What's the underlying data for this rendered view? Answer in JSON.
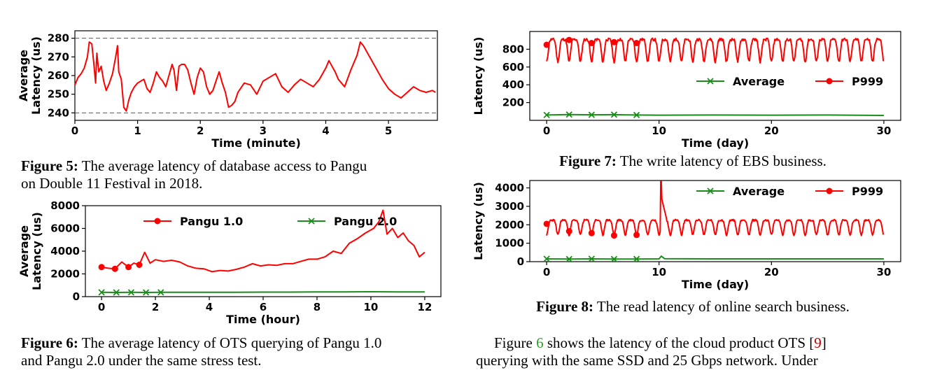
{
  "charts": [
    {
      "id": "fig5",
      "type": "line",
      "xlabel": "Time (minute)",
      "ylabel": "Average Latency (us)",
      "xlim": [
        0,
        5.78
      ],
      "ylim": [
        236,
        284
      ],
      "xticks": [
        0,
        1,
        2,
        3,
        4,
        5
      ],
      "yticks": [
        240,
        250,
        260,
        270,
        280
      ],
      "hlines": [
        240,
        280
      ],
      "legend": [],
      "series": [
        {
          "name": "",
          "color": "#ff0000",
          "marker": "none",
          "x": [
            0,
            0.05,
            0.1,
            0.15,
            0.2,
            0.23,
            0.27,
            0.3,
            0.33,
            0.35,
            0.38,
            0.42,
            0.46,
            0.5,
            0.55,
            0.6,
            0.65,
            0.68,
            0.7,
            0.74,
            0.78,
            0.82,
            0.86,
            0.9,
            0.95,
            1.0,
            1.05,
            1.1,
            1.15,
            1.2,
            1.25,
            1.3,
            1.35,
            1.4,
            1.45,
            1.5,
            1.55,
            1.58,
            1.62,
            1.66,
            1.7,
            1.75,
            1.8,
            1.85,
            1.9,
            1.95,
            2.0,
            2.05,
            2.1,
            2.15,
            2.2,
            2.25,
            2.3,
            2.35,
            2.4,
            2.45,
            2.5,
            2.55,
            2.6,
            2.7,
            2.8,
            2.9,
            3.0,
            3.1,
            3.2,
            3.3,
            3.4,
            3.5,
            3.6,
            3.7,
            3.8,
            3.9,
            4.0,
            4.05,
            4.1,
            4.15,
            4.2,
            4.3,
            4.4,
            4.5,
            4.55,
            4.6,
            4.7,
            4.8,
            4.9,
            5.0,
            5.1,
            5.2,
            5.3,
            5.4,
            5.5,
            5.6,
            5.7,
            5.75
          ],
          "y": [
            255,
            259,
            261,
            264,
            270,
            278,
            277,
            267,
            256,
            272,
            262,
            265,
            257,
            252,
            256,
            261,
            270,
            276,
            262,
            258,
            243,
            241,
            247,
            251,
            254,
            256,
            257,
            258,
            253,
            251,
            256,
            262,
            259,
            257,
            254,
            260,
            266,
            263,
            252,
            265,
            266,
            266,
            263,
            256,
            250,
            259,
            264,
            262,
            254,
            250,
            252,
            257,
            262,
            256,
            251,
            243,
            244,
            246,
            251,
            256,
            255,
            250,
            257,
            259,
            261,
            254,
            251,
            255,
            258,
            256,
            254,
            258,
            264,
            268,
            265,
            262,
            258,
            254,
            263,
            271,
            278,
            276,
            270,
            264,
            258,
            253,
            250,
            248,
            251,
            254,
            252,
            251,
            252,
            251
          ]
        }
      ]
    },
    {
      "id": "fig6",
      "type": "line",
      "xlabel": "Time (hour)",
      "ylabel": "Average Latency (us)",
      "xlim": [
        -0.6,
        12.6
      ],
      "ylim": [
        0,
        8000
      ],
      "xticks": [
        0,
        2,
        4,
        6,
        8,
        10,
        12
      ],
      "yticks": [
        0,
        2000,
        4000,
        6000,
        8000
      ],
      "hlines": [],
      "legend": [
        "Pangu 1.0",
        "Pangu 2.0"
      ],
      "series": [
        {
          "name": "Pangu 1.0",
          "color": "#ff0000",
          "marker": "dot",
          "x": [
            0,
            0.25,
            0.5,
            0.75,
            1.0,
            1.2,
            1.4,
            1.6,
            1.8,
            2.0,
            2.3,
            2.6,
            2.9,
            3.2,
            3.5,
            3.8,
            4.1,
            4.4,
            4.7,
            5.0,
            5.3,
            5.6,
            5.9,
            6.2,
            6.5,
            6.8,
            7.1,
            7.4,
            7.7,
            8.0,
            8.3,
            8.6,
            8.9,
            9.2,
            9.5,
            9.8,
            10.1,
            10.3,
            10.45,
            10.6,
            10.8,
            11.0,
            11.2,
            11.4,
            11.6,
            11.8,
            12.0
          ],
          "y": [
            2600,
            2500,
            2450,
            3050,
            2600,
            2950,
            2800,
            3900,
            2950,
            3250,
            3100,
            3200,
            3050,
            2700,
            2500,
            2450,
            2200,
            2300,
            2250,
            2400,
            2600,
            2900,
            2700,
            2800,
            2750,
            2900,
            2900,
            3100,
            3300,
            3300,
            3500,
            4000,
            3800,
            4700,
            5100,
            5600,
            6000,
            6600,
            7600,
            5500,
            6000,
            5200,
            5600,
            4900,
            4500,
            3500,
            3900
          ]
        },
        {
          "name": "Pangu 2.0",
          "color": "#1a8c1a",
          "marker": "x",
          "x": [
            0,
            0.55,
            1.1,
            1.65,
            2.2,
            3,
            4,
            5,
            6,
            7,
            8,
            9,
            10,
            11,
            12
          ],
          "y": [
            380,
            370,
            380,
            370,
            380,
            380,
            390,
            380,
            400,
            400,
            410,
            420,
            430,
            420,
            420
          ]
        }
      ]
    },
    {
      "id": "fig7",
      "type": "line",
      "xlabel": "Time (day)",
      "ylabel": "Latency (us)",
      "xlim": [
        -1.5,
        31.5
      ],
      "ylim": [
        0,
        1000
      ],
      "xticks": [
        0,
        10,
        20,
        30
      ],
      "yticks": [
        200,
        400,
        600,
        800
      ],
      "hlines": [],
      "legend": [
        "Average",
        "P999"
      ],
      "series": [
        {
          "name": "Average",
          "color": "#1a8c1a",
          "marker": "x",
          "x": [
            0,
            2,
            4,
            6,
            8,
            10,
            15,
            20,
            25,
            30
          ],
          "y": [
            60,
            65,
            62,
            64,
            60,
            58,
            60,
            58,
            60,
            55
          ]
        },
        {
          "name": "P999",
          "color": "#ff0000",
          "marker": "dot",
          "dots_x": [
            0,
            2,
            4,
            6,
            8
          ],
          "dots_y": [
            850,
            905,
            870,
            880,
            870
          ],
          "pattern": {
            "period": 1.0,
            "min": 660,
            "max": 910
          }
        }
      ]
    },
    {
      "id": "fig8",
      "type": "line",
      "xlabel": "Time (day)",
      "ylabel": "Latency (us)",
      "xlim": [
        -1.5,
        31.5
      ],
      "ylim": [
        0,
        4400
      ],
      "xticks": [
        0,
        10,
        20,
        30
      ],
      "yticks": [
        0,
        1000,
        2000,
        3000,
        4000
      ],
      "hlines": [],
      "legend": [
        "Average",
        "P999"
      ],
      "series": [
        {
          "name": "Average",
          "color": "#1a8c1a",
          "marker": "x",
          "x": [
            0,
            2,
            4,
            6,
            8,
            10,
            10.2,
            10.5,
            15,
            20,
            25,
            30
          ],
          "y": [
            150,
            140,
            150,
            140,
            145,
            150,
            300,
            160,
            150,
            150,
            150,
            150
          ]
        },
        {
          "name": "P999",
          "color": "#ff0000",
          "marker": "dot",
          "dots_x": [
            0,
            2,
            4,
            6,
            8
          ],
          "dots_y": [
            2050,
            1650,
            1550,
            1420,
            1450
          ],
          "pattern": {
            "period": 1.0,
            "min": 1450,
            "max": 2250
          },
          "spike": {
            "x": 10.2,
            "y": 4350
          }
        }
      ]
    }
  ],
  "captions": {
    "fig5": {
      "label": "Figure 5:",
      "text1": " The average latency of database access to Pangu",
      "text2": "on Double 11 Festival in 2018."
    },
    "fig6": {
      "label": "Figure 6:",
      "text1": " The average latency of OTS querying of Pangu 1.0",
      "text2": "and Pangu 2.0 under the same stress test."
    },
    "fig7": {
      "label": "Figure 7:",
      "text1": " The write latency of EBS business."
    },
    "fig8": {
      "label": "Figure 8:",
      "text1": " The read latency of online search business."
    }
  },
  "body_text": {
    "line1_a": "Figure ",
    "line1_ref": "6",
    "line1_b": " shows the latency of the cloud product OTS [",
    "line1_cite": "9",
    "line1_c": "]",
    "line2": "querying with the same SSD and 25 Gbps network. Under"
  }
}
